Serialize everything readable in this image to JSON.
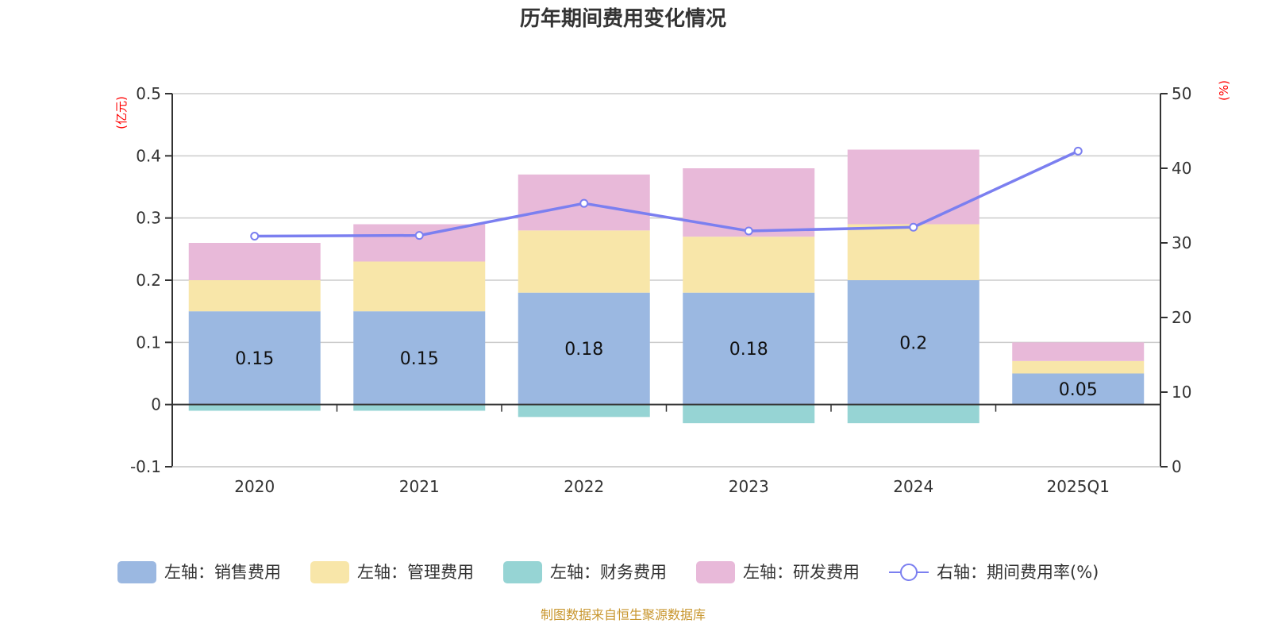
{
  "chart_data": {
    "type": "bar",
    "stacked": true,
    "title": "历年期间费用变化情况",
    "categories": [
      "2020",
      "2021",
      "2022",
      "2023",
      "2024",
      "2025Q1"
    ],
    "left_axis": {
      "unit_label": "(亿元)",
      "ylim": [
        -0.1,
        0.5
      ],
      "ticks": [
        "0.5",
        "0.4",
        "0.3",
        "0.2",
        "0.1",
        "0",
        "-0.1"
      ],
      "tick_values": [
        0.5,
        0.4,
        0.3,
        0.2,
        0.1,
        0,
        -0.1
      ]
    },
    "right_axis": {
      "unit_label": "(%)",
      "ylim": [
        0,
        50
      ],
      "ticks": [
        "50",
        "40",
        "30",
        "20",
        "10",
        "0"
      ],
      "tick_values": [
        50,
        40,
        30,
        20,
        10,
        0
      ]
    },
    "grid": true,
    "series": [
      {
        "name": "左轴：销售费用",
        "axis": "left",
        "kind": "bar",
        "color": "#9bb8e1",
        "values": [
          0.15,
          0.15,
          0.18,
          0.18,
          0.2,
          0.05
        ],
        "labels": [
          "0.15",
          "0.15",
          "0.18",
          "0.18",
          "0.2",
          "0.05"
        ]
      },
      {
        "name": "左轴：管理费用",
        "axis": "left",
        "kind": "bar",
        "color": "#f8e6a9",
        "values": [
          0.05,
          0.08,
          0.1,
          0.09,
          0.09,
          0.02
        ]
      },
      {
        "name": "左轴：财务费用",
        "axis": "left",
        "kind": "bar",
        "color": "#96d4d4",
        "values": [
          -0.01,
          -0.01,
          -0.02,
          -0.03,
          -0.03,
          0.0
        ]
      },
      {
        "name": "左轴：研发费用",
        "axis": "left",
        "kind": "bar",
        "color": "#e8b9d9",
        "values": [
          0.06,
          0.06,
          0.09,
          0.11,
          0.12,
          0.03
        ]
      },
      {
        "name": "右轴：期间费用率(%)",
        "axis": "right",
        "kind": "line",
        "color": "#7b7ff0",
        "values": [
          30.9,
          31.0,
          35.3,
          31.6,
          32.1,
          42.3
        ]
      }
    ],
    "legend_position": "bottom",
    "source": "制图数据来自恒生聚源数据库"
  }
}
